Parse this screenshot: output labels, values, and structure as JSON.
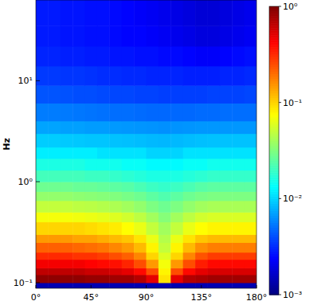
{
  "chart_data": {
    "type": "heatmap",
    "y_label": "Hz",
    "log": "y",
    "xlim": [
      0,
      180
    ],
    "ylim": [
      0.088,
      63
    ],
    "xticks": [
      {
        "value": 0,
        "label": "0°"
      },
      {
        "value": 45,
        "label": "45°"
      },
      {
        "value": 90,
        "label": "90°"
      },
      {
        "value": 135,
        "label": "135°"
      },
      {
        "value": 180,
        "label": "180°"
      }
    ],
    "yticks": [
      {
        "value": 0.1,
        "label": "10⁻¹"
      },
      {
        "value": 1,
        "label": "10⁰"
      },
      {
        "value": 10,
        "label": "10¹"
      }
    ],
    "x_edges": [
      0,
      10,
      20,
      30,
      40,
      50,
      60,
      70,
      80,
      90,
      100,
      110,
      120,
      130,
      140,
      150,
      160,
      170,
      180
    ],
    "y_edges": [
      0.088,
      0.1,
      0.12,
      0.14,
      0.17,
      0.2,
      0.25,
      0.3,
      0.4,
      0.5,
      0.65,
      0.8,
      1,
      1.3,
      1.7,
      2.2,
      3,
      4,
      6,
      9,
      14,
      22,
      35,
      63
    ],
    "values": [
      [
        0.0014,
        0.0014,
        0.0014,
        0.0014,
        0.0014,
        0.0014,
        0.0014,
        0.0014,
        0.0014,
        0.0014,
        0.0014,
        0.0014,
        0.0014,
        0.0014,
        0.0014,
        0.0014,
        0.0014,
        0.0014
      ],
      [
        0.9,
        0.9,
        0.9,
        0.9,
        0.85,
        0.85,
        0.8,
        0.8,
        0.7,
        0.5,
        0.09,
        0.5,
        0.7,
        0.75,
        0.8,
        0.8,
        0.8,
        0.8
      ],
      [
        0.65,
        0.65,
        0.65,
        0.65,
        0.6,
        0.6,
        0.55,
        0.5,
        0.4,
        0.25,
        0.08,
        0.25,
        0.4,
        0.5,
        0.55,
        0.55,
        0.55,
        0.55
      ],
      [
        0.45,
        0.45,
        0.45,
        0.45,
        0.42,
        0.4,
        0.38,
        0.33,
        0.25,
        0.15,
        0.07,
        0.15,
        0.25,
        0.35,
        0.4,
        0.4,
        0.4,
        0.4
      ],
      [
        0.32,
        0.32,
        0.32,
        0.3,
        0.3,
        0.28,
        0.25,
        0.22,
        0.17,
        0.1,
        0.06,
        0.1,
        0.17,
        0.24,
        0.28,
        0.28,
        0.28,
        0.28
      ],
      [
        0.22,
        0.22,
        0.22,
        0.21,
        0.2,
        0.19,
        0.17,
        0.15,
        0.12,
        0.08,
        0.05,
        0.08,
        0.12,
        0.16,
        0.18,
        0.18,
        0.18,
        0.18
      ],
      [
        0.15,
        0.15,
        0.15,
        0.14,
        0.14,
        0.13,
        0.12,
        0.11,
        0.09,
        0.065,
        0.045,
        0.065,
        0.09,
        0.11,
        0.12,
        0.12,
        0.12,
        0.12
      ],
      [
        0.1,
        0.1,
        0.1,
        0.1,
        0.095,
        0.09,
        0.085,
        0.075,
        0.065,
        0.05,
        0.04,
        0.05,
        0.065,
        0.075,
        0.08,
        0.08,
        0.08,
        0.08
      ],
      [
        0.07,
        0.07,
        0.07,
        0.068,
        0.066,
        0.063,
        0.06,
        0.055,
        0.048,
        0.04,
        0.033,
        0.04,
        0.048,
        0.055,
        0.058,
        0.058,
        0.058,
        0.058
      ],
      [
        0.05,
        0.05,
        0.05,
        0.048,
        0.047,
        0.045,
        0.043,
        0.04,
        0.036,
        0.031,
        0.028,
        0.031,
        0.036,
        0.04,
        0.042,
        0.042,
        0.042,
        0.042
      ],
      [
        0.036,
        0.036,
        0.036,
        0.035,
        0.034,
        0.033,
        0.032,
        0.03,
        0.028,
        0.025,
        0.023,
        0.025,
        0.028,
        0.03,
        0.031,
        0.031,
        0.031,
        0.031
      ],
      [
        0.028,
        0.028,
        0.028,
        0.027,
        0.027,
        0.026,
        0.025,
        0.024,
        0.022,
        0.02,
        0.019,
        0.02,
        0.022,
        0.024,
        0.025,
        0.025,
        0.025,
        0.025
      ],
      [
        0.021,
        0.021,
        0.021,
        0.021,
        0.02,
        0.02,
        0.019,
        0.018,
        0.017,
        0.016,
        0.016,
        0.016,
        0.017,
        0.018,
        0.019,
        0.019,
        0.019,
        0.019
      ],
      [
        0.016,
        0.016,
        0.016,
        0.016,
        0.015,
        0.015,
        0.015,
        0.014,
        0.014,
        0.013,
        0.013,
        0.013,
        0.014,
        0.014,
        0.015,
        0.015,
        0.015,
        0.015
      ],
      [
        0.012,
        0.012,
        0.012,
        0.012,
        0.012,
        0.011,
        0.011,
        0.011,
        0.011,
        0.01,
        0.01,
        0.01,
        0.011,
        0.011,
        0.011,
        0.011,
        0.011,
        0.011
      ],
      [
        0.0095,
        0.0095,
        0.0093,
        0.0092,
        0.009,
        0.009,
        0.0088,
        0.0087,
        0.0085,
        0.0083,
        0.0082,
        0.0083,
        0.0085,
        0.0087,
        0.0088,
        0.0088,
        0.0088,
        0.0088
      ],
      [
        0.0072,
        0.0072,
        0.007,
        0.007,
        0.0068,
        0.0068,
        0.0067,
        0.0066,
        0.0065,
        0.0064,
        0.0063,
        0.0064,
        0.0065,
        0.0066,
        0.0066,
        0.0066,
        0.0066,
        0.0066
      ],
      [
        0.0055,
        0.0055,
        0.0054,
        0.0053,
        0.0052,
        0.0051,
        0.005,
        0.005,
        0.0049,
        0.0048,
        0.0048,
        0.0048,
        0.0048,
        0.0049,
        0.0049,
        0.005,
        0.005,
        0.005
      ],
      [
        0.0042,
        0.0042,
        0.0041,
        0.004,
        0.004,
        0.0039,
        0.0038,
        0.0038,
        0.0037,
        0.0037,
        0.0036,
        0.0036,
        0.0036,
        0.0036,
        0.0037,
        0.0037,
        0.0037,
        0.0038
      ],
      [
        0.0035,
        0.0035,
        0.0034,
        0.0034,
        0.0033,
        0.0032,
        0.0032,
        0.0031,
        0.0031,
        0.003,
        0.003,
        0.003,
        0.0029,
        0.0029,
        0.0029,
        0.003,
        0.003,
        0.0031
      ],
      [
        0.003,
        0.003,
        0.0029,
        0.0029,
        0.0028,
        0.0028,
        0.0027,
        0.0027,
        0.0026,
        0.0026,
        0.0025,
        0.0025,
        0.0024,
        0.0023,
        0.0023,
        0.0024,
        0.0025,
        0.0026
      ],
      [
        0.0028,
        0.0028,
        0.0027,
        0.0027,
        0.0026,
        0.0026,
        0.0025,
        0.0024,
        0.0024,
        0.0023,
        0.0022,
        0.0021,
        0.002,
        0.0019,
        0.0019,
        0.002,
        0.0021,
        0.0022
      ],
      [
        0.0028,
        0.0028,
        0.0027,
        0.0027,
        0.0026,
        0.0026,
        0.0025,
        0.0024,
        0.0023,
        0.0022,
        0.0021,
        0.002,
        0.0019,
        0.0018,
        0.0018,
        0.0019,
        0.002,
        0.0021
      ]
    ],
    "colorbar_lim": [
      0.001,
      1
    ],
    "colorbar_ticks": [
      {
        "value": 1,
        "label": "10⁰"
      },
      {
        "value": 0.1,
        "label": "10⁻¹"
      },
      {
        "value": 0.01,
        "label": "10⁻²"
      },
      {
        "value": 0.001,
        "label": "10⁻³"
      }
    ]
  }
}
